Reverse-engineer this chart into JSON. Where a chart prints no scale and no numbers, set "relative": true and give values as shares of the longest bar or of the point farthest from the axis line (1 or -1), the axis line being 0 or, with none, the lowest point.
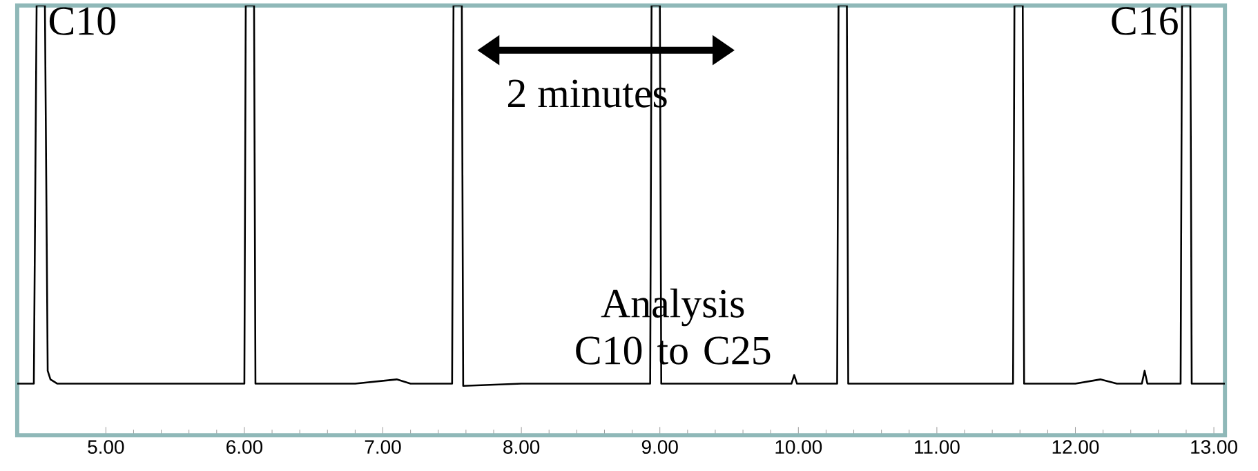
{
  "chart_data": {
    "type": "line",
    "relative": true,
    "x": [
      4.36,
      4.48,
      4.5,
      4.56,
      4.58,
      4.6,
      4.65,
      4.8,
      5.0,
      5.3,
      5.6,
      6.0,
      6.01,
      6.07,
      6.08,
      6.5,
      6.8,
      7.1,
      7.2,
      7.5,
      7.51,
      7.57,
      7.58,
      8.0,
      8.5,
      8.93,
      8.94,
      9.0,
      9.01,
      9.5,
      9.95,
      9.97,
      9.99,
      10.28,
      10.29,
      10.35,
      10.36,
      11.0,
      11.55,
      11.56,
      11.62,
      11.63,
      12.0,
      12.18,
      12.3,
      12.48,
      12.5,
      12.52,
      12.76,
      12.77,
      12.83,
      12.84,
      13.08
    ],
    "series": [
      {
        "color": "#000000",
        "values": [
          0.12,
          0.12,
          1,
          1,
          0.15,
          0.13,
          0.12,
          0.12,
          0.12,
          0.12,
          0.12,
          0.12,
          1,
          1,
          0.12,
          0.12,
          0.12,
          0.13,
          0.12,
          0.12,
          1,
          1,
          0.115,
          0.12,
          0.12,
          0.12,
          1,
          1,
          0.12,
          0.12,
          0.12,
          0.14,
          0.12,
          0.12,
          1,
          1,
          0.12,
          0.12,
          0.12,
          1,
          1,
          0.12,
          0.12,
          0.13,
          0.12,
          0.12,
          0.15,
          0.12,
          0.12,
          1,
          1,
          0.12,
          0.12
        ]
      }
    ],
    "xlim": [
      4.36,
      13.08
    ],
    "xticks": [
      {
        "value": 5,
        "label": "5.00"
      },
      {
        "value": 6,
        "label": "6.00"
      },
      {
        "value": 7,
        "label": "7.00"
      },
      {
        "value": 8,
        "label": "8.00"
      },
      {
        "value": 9,
        "label": "9.00"
      },
      {
        "value": 10,
        "label": "10.00"
      },
      {
        "value": 11,
        "label": "11.00"
      },
      {
        "value": 12,
        "label": "12.00"
      },
      {
        "value": 13,
        "label": "13.00"
      }
    ],
    "grid": false,
    "annotations": [
      {
        "text": "C10",
        "x": 4.53,
        "y": 1
      },
      {
        "text": "C16",
        "x": 12.8,
        "y": 1
      },
      "2 minutes",
      "Analysis C10 to C25"
    ]
  }
}
